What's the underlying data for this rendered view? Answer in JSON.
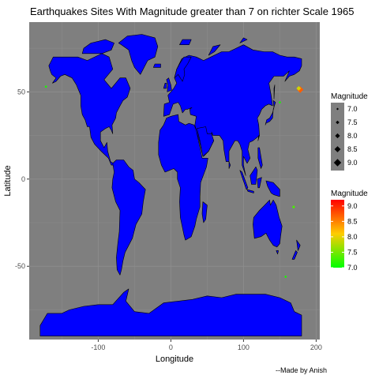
{
  "chart_data": {
    "type": "scatter",
    "map": "world",
    "title": "Earthquakes Sites With Magnitude greater than 7 on richter Scale  1965",
    "xlabel": "Longitude",
    "ylabel": "Latitude",
    "caption": "--Made by Anish",
    "xlim": [
      -195,
      205
    ],
    "ylim": [
      -92,
      90
    ],
    "x_ticks": [
      -100,
      0,
      100,
      200
    ],
    "x_tick_labels": [
      "-100",
      "0",
      "100",
      "200"
    ],
    "y_ticks": [
      -50,
      0,
      50
    ],
    "y_tick_labels": [
      "-50",
      "0",
      "50"
    ],
    "grid": true,
    "panel_color": "#7f7f7f",
    "grid_color": "#8c8c8c",
    "land_color": "#0000ff",
    "land_outline_color": "#000000",
    "legend_position": "right",
    "legend_size": {
      "title": "Magnitude",
      "breaks": [
        7.0,
        7.5,
        8.0,
        8.5,
        9.0
      ],
      "labels": [
        "7.0",
        "7.5",
        "8.0",
        "8.5",
        "9.0"
      ]
    },
    "legend_color": {
      "title": "Magnitude",
      "breaks": [
        7.0,
        7.5,
        8.0,
        8.5,
        9.0
      ],
      "labels": [
        "7.0",
        "7.5",
        "8.0",
        "8.5",
        "9.0"
      ],
      "low_color": "#00ff00",
      "high_color": "#ff0000",
      "range": [
        7.0,
        9.2
      ]
    },
    "points": [
      {
        "x": -172,
        "y": 53,
        "magnitude": 7.1
      },
      {
        "x": 178,
        "y": 51.3,
        "magnitude": 8.7
      },
      {
        "x": 176,
        "y": 52,
        "magnitude": 7.9
      },
      {
        "x": 150,
        "y": 44,
        "magnitude": 7.1
      },
      {
        "x": 169,
        "y": -16,
        "magnitude": 7.3
      },
      {
        "x": 158,
        "y": -56,
        "magnitude": 7.1
      }
    ]
  }
}
